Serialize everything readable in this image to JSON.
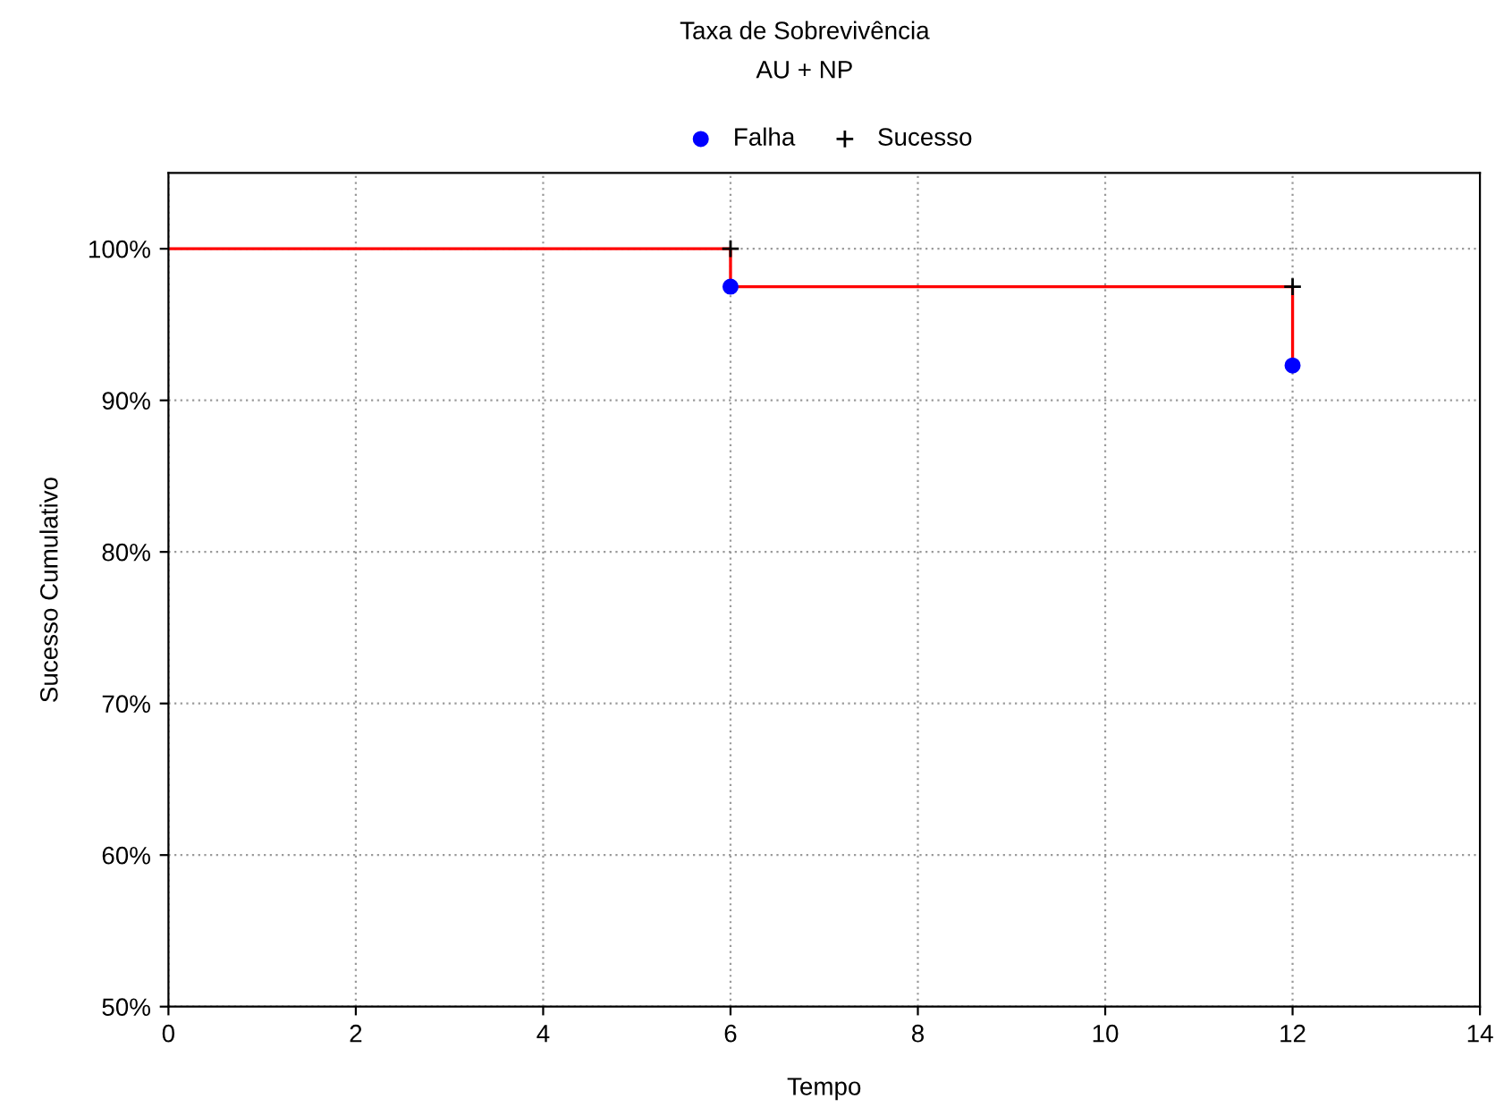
{
  "chart_data": {
    "type": "step",
    "title": "Taxa de Sobrevivência",
    "subtitle": "AU + NP",
    "xlabel": "Tempo",
    "ylabel": "Sucesso Cumulativo",
    "xlim": [
      0,
      14
    ],
    "xticks": [
      0,
      2,
      4,
      6,
      8,
      10,
      12,
      14
    ],
    "ylim": [
      50,
      105
    ],
    "yticks": [
      {
        "value": 50,
        "label": "50%"
      },
      {
        "value": 60,
        "label": "60%"
      },
      {
        "value": 70,
        "label": "70%"
      },
      {
        "value": 80,
        "label": "80%"
      },
      {
        "value": 90,
        "label": "90%"
      },
      {
        "value": 100,
        "label": "100%"
      }
    ],
    "grid": true,
    "legend": "top",
    "series": [
      {
        "color": "#ff0000",
        "x": [
          0,
          6,
          6,
          12,
          12
        ],
        "values": [
          100,
          100,
          97.5,
          97.5,
          92.3
        ],
        "marker": "none"
      },
      {
        "type": "scatter",
        "name": "Falha",
        "color": "#0000ff",
        "x": [
          6,
          12
        ],
        "values": [
          97.5,
          92.3
        ],
        "marker": "circle"
      },
      {
        "type": "scatter",
        "name": "Sucesso",
        "color": "#000000",
        "x": [
          6,
          12
        ],
        "values": [
          100,
          97.5
        ],
        "marker": "cross"
      }
    ]
  }
}
